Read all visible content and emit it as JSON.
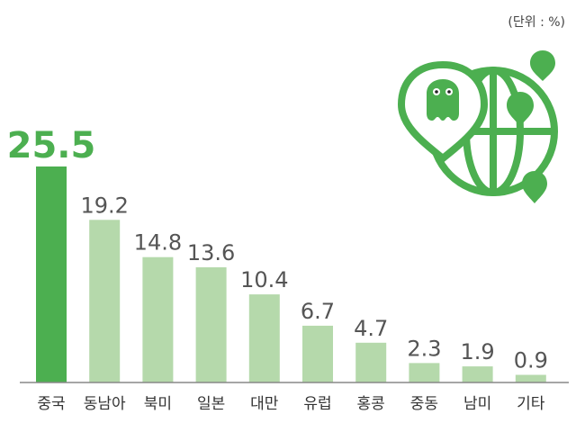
{
  "unit_note": "(단위 : %)",
  "colors": {
    "highlight": "#4caf50",
    "bar": "#b5d9ab",
    "label": "#555555",
    "highlight_label": "#4caf50",
    "axis": "#888888",
    "icon": "#4caf50"
  },
  "icon": "globe-with-location-pins-icon",
  "chart_data": {
    "type": "bar",
    "categories": [
      "중국",
      "동남아",
      "북미",
      "일본",
      "대만",
      "유럽",
      "홍콩",
      "중동",
      "남미",
      "기타"
    ],
    "values": [
      25.5,
      19.2,
      14.8,
      13.6,
      10.4,
      6.7,
      4.7,
      2.3,
      1.9,
      0.9
    ],
    "value_labels": [
      "25.5",
      "19.2",
      "14.8",
      "13.6",
      "10.4",
      "6.7",
      "4.7",
      "2.3",
      "1.9",
      "0.9"
    ],
    "highlight_index": 0,
    "ylim": [
      0,
      25.5
    ],
    "grid": false,
    "title": "",
    "xlabel": "",
    "ylabel": ""
  }
}
